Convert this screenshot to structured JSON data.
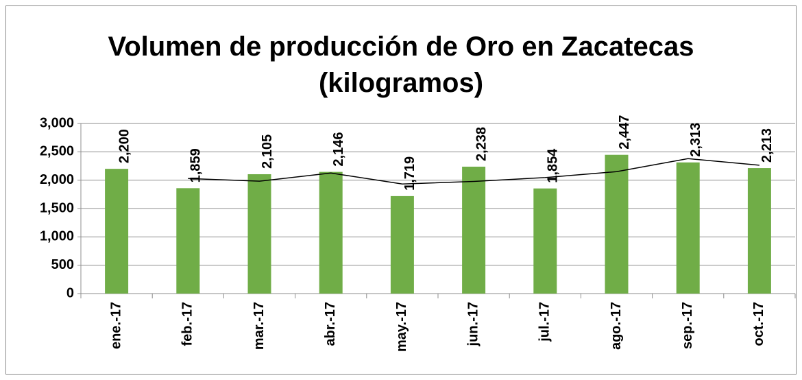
{
  "chart_data": {
    "type": "bar",
    "title": "Volumen de producción de Oro en Zacatecas (kilogramos)",
    "categories": [
      "ene.-17",
      "feb.-17",
      "mar.-17",
      "abr.-17",
      "may.-17",
      "jun.-17",
      "jul.-17",
      "ago.-17",
      "sep.-17",
      "oct.-17"
    ],
    "values": [
      2200,
      1859,
      2105,
      2146,
      1719,
      2238,
      1854,
      2447,
      2313,
      2213
    ],
    "value_labels": [
      "2,200",
      "1,859",
      "2,105",
      "2,146",
      "1,719",
      "2,238",
      "1,854",
      "2,447",
      "2,313",
      "2,213"
    ],
    "color": "#70ad47",
    "ylim": [
      0,
      3000
    ],
    "yticks": [
      0,
      500,
      {
        "value": 1000,
        "label": "1,000"
      },
      {
        "value": 1500,
        "label": "1,500"
      },
      {
        "value": 2000,
        "label": "2,000"
      },
      {
        "value": 2500,
        "label": "2,500"
      },
      {
        "value": 3000,
        "label": "3,000"
      }
    ],
    "grid": true,
    "trendline": {
      "type": "moving-average",
      "period": 2,
      "color": "#000000"
    }
  }
}
